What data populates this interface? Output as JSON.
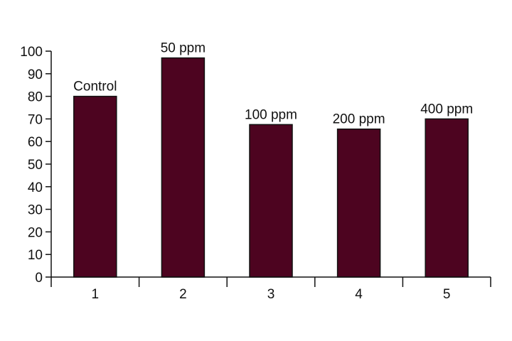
{
  "chart_data": {
    "type": "bar",
    "categories": [
      "1",
      "2",
      "3",
      "4",
      "5"
    ],
    "values": [
      80,
      97,
      67.5,
      65.5,
      70
    ],
    "bar_labels": [
      "Control",
      "50 ppm",
      "100 ppm",
      "200 ppm",
      "400 ppm"
    ],
    "title": "",
    "xlabel": "",
    "ylabel": "",
    "ylim": [
      0,
      100
    ],
    "y_ticks": [
      "0",
      "10",
      "20",
      "30",
      "40",
      "50",
      "60",
      "70",
      "80",
      "90",
      "100"
    ],
    "grid": false,
    "legend": "none",
    "bar_color": "#4d0420",
    "bar_edge_color": "#111111"
  }
}
